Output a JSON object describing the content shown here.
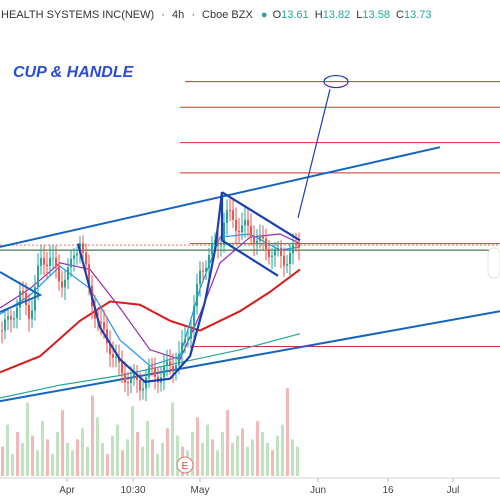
{
  "header": {
    "symbol_title": "HEALTH SYSTEMS INC(NEW)",
    "interval": "4h",
    "exchange": "Cboe BZX",
    "ohlc": [
      {
        "label": "O",
        "value": "13.61"
      },
      {
        "label": "H",
        "value": "13.82"
      },
      {
        "label": "L",
        "value": "13.58"
      },
      {
        "label": "C",
        "value": "13.73"
      }
    ]
  },
  "annotation": {
    "text": "CUP & HANDLE"
  },
  "event_badge": {
    "text": "E"
  },
  "chart_data": {
    "type": "candlestick",
    "x_ticks": [
      "Apr",
      "10:30",
      "May",
      "Jun",
      "16",
      "Jul"
    ],
    "y_range": [
      11.3,
      16.4
    ],
    "price_path": [
      [
        0,
        12.35
      ],
      [
        10,
        12.5
      ],
      [
        20,
        12.9
      ],
      [
        30,
        12.6
      ],
      [
        40,
        13.4
      ],
      [
        50,
        13.5
      ],
      [
        60,
        13.1
      ],
      [
        70,
        13.3
      ],
      [
        80,
        13.8
      ],
      [
        90,
        12.9
      ],
      [
        100,
        12.4
      ],
      [
        110,
        12.1
      ],
      [
        120,
        11.7
      ],
      [
        130,
        11.6
      ],
      [
        140,
        11.5
      ],
      [
        150,
        11.7
      ],
      [
        160,
        11.65
      ],
      [
        170,
        11.8
      ],
      [
        180,
        11.95
      ],
      [
        190,
        12.4
      ],
      [
        200,
        13.2
      ],
      [
        210,
        13.6
      ],
      [
        220,
        13.7
      ],
      [
        225,
        14.2
      ],
      [
        235,
        14.0
      ],
      [
        245,
        13.95
      ],
      [
        255,
        13.8
      ],
      [
        265,
        13.65
      ],
      [
        275,
        13.55
      ],
      [
        285,
        13.45
      ],
      [
        295,
        13.6
      ],
      [
        300,
        13.73
      ]
    ],
    "moving_averages": [
      {
        "color": "#d81b1b",
        "points": [
          [
            0,
            11.7
          ],
          [
            40,
            11.95
          ],
          [
            80,
            12.5
          ],
          [
            110,
            12.8
          ],
          [
            140,
            12.75
          ],
          [
            170,
            12.5
          ],
          [
            200,
            12.35
          ],
          [
            240,
            12.65
          ],
          [
            270,
            12.95
          ],
          [
            300,
            13.3
          ]
        ]
      },
      {
        "color": "#9c27b0",
        "points": [
          [
            0,
            12.7
          ],
          [
            30,
            13.0
          ],
          [
            60,
            13.4
          ],
          [
            90,
            13.3
          ],
          [
            120,
            12.7
          ],
          [
            150,
            12.05
          ],
          [
            180,
            11.9
          ],
          [
            200,
            12.6
          ],
          [
            220,
            13.4
          ],
          [
            250,
            13.8
          ],
          [
            280,
            13.85
          ],
          [
            300,
            13.7
          ]
        ]
      },
      {
        "color": "#2196f3",
        "points": [
          [
            0,
            12.6
          ],
          [
            30,
            12.9
          ],
          [
            60,
            13.35
          ],
          [
            90,
            13.0
          ],
          [
            120,
            12.2
          ],
          [
            150,
            11.8
          ],
          [
            180,
            11.95
          ],
          [
            200,
            13.0
          ],
          [
            220,
            13.8
          ],
          [
            250,
            13.85
          ],
          [
            280,
            13.6
          ],
          [
            300,
            13.65
          ]
        ]
      },
      {
        "color": "#26a69a",
        "points": [
          [
            0,
            11.3
          ],
          [
            60,
            11.5
          ],
          [
            120,
            11.65
          ],
          [
            180,
            11.85
          ],
          [
            240,
            12.05
          ],
          [
            300,
            12.3
          ]
        ]
      }
    ],
    "trend_channel": {
      "upper": [
        [
          0,
          13.65
        ],
        [
          440,
          15.2
        ]
      ],
      "lower": [
        [
          0,
          11.25
        ],
        [
          500,
          12.65
        ]
      ]
    },
    "pattern_lines": [
      {
        "name": "cup",
        "points": [
          [
            78,
            13.7
          ],
          [
            100,
            12.4
          ],
          [
            120,
            11.9
          ],
          [
            145,
            11.55
          ],
          [
            170,
            11.6
          ],
          [
            190,
            11.95
          ],
          [
            205,
            12.8
          ],
          [
            215,
            13.6
          ],
          [
            222,
            14.5
          ]
        ]
      },
      {
        "name": "handle-top",
        "points": [
          [
            222,
            14.5
          ],
          [
            300,
            13.75
          ]
        ]
      },
      {
        "name": "handle-bottom",
        "points": [
          [
            222,
            13.75
          ],
          [
            278,
            13.2
          ]
        ]
      },
      {
        "name": "handle-left",
        "points": [
          [
            222,
            14.5
          ],
          [
            222,
            13.75
          ]
        ]
      },
      {
        "name": "breakout-projection",
        "points": [
          [
            298,
            14.1
          ],
          [
            330,
            16.1
          ]
        ]
      }
    ],
    "target_levels": [
      16.22,
      15.82,
      15.27,
      14.8,
      13.7,
      12.1
    ],
    "current_level": 13.6,
    "projected_target": 16.22,
    "volume": [
      8,
      14,
      6,
      12,
      9,
      20,
      11,
      7,
      15,
      10,
      6,
      12,
      18,
      9,
      7,
      10,
      13,
      8,
      22,
      16,
      9,
      6,
      11,
      14,
      7,
      10,
      19,
      12,
      8,
      15,
      10,
      6,
      9,
      13,
      20,
      11,
      8,
      7,
      12,
      16,
      9,
      14,
      10,
      7,
      12,
      18,
      9,
      11,
      13,
      8,
      10,
      15,
      12,
      9,
      7,
      11,
      14,
      24,
      10,
      8
    ]
  }
}
